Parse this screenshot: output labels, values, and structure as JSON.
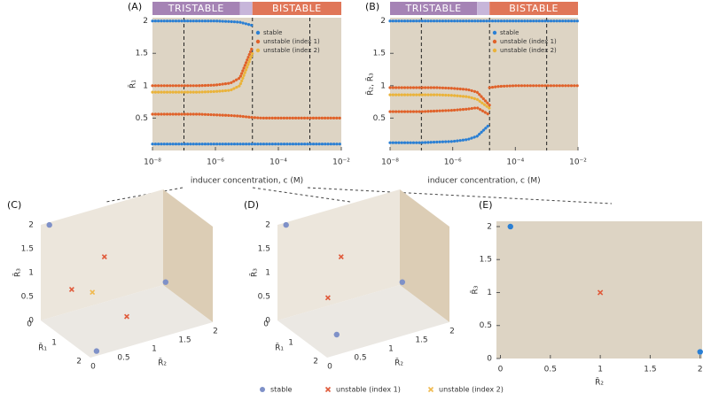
{
  "chart_data": [
    {
      "type": "line",
      "label": "(A)",
      "xscale": "log",
      "xlabel": "inducer concentration, c (M)",
      "ylabel": "R̄₁",
      "background": "#ddd4c4",
      "legend": "upper right",
      "x": [
        1e-08,
        3e-08,
        1e-07,
        3e-07,
        1e-06,
        3e-06,
        6e-06,
        1.5e-05,
        3e-05,
        0.0001,
        0.0003,
        0.001,
        0.003,
        0.01
      ],
      "xlim": [
        1e-08,
        0.01
      ],
      "xticks": [
        {
          "value": 1e-08,
          "label": "10⁻⁸"
        },
        {
          "value": 1e-06,
          "label": "10⁻⁶"
        },
        {
          "value": 0.0001,
          "label": "10⁻⁴"
        },
        {
          "value": 0.01,
          "label": "10⁻²"
        }
      ],
      "ylim": [
        0,
        2.05
      ],
      "yticks": [
        0.5,
        1,
        1.5,
        2
      ],
      "regions": [
        {
          "label": "TRISTABLE",
          "from": 1e-08,
          "to": 6e-06,
          "color": "#a583b5"
        },
        {
          "from": 6e-06,
          "to": 1.5e-05,
          "color": "#c7b6da"
        },
        {
          "label": "BISTABLE",
          "from": 1.5e-05,
          "to": 0.01,
          "color": "#e07658"
        }
      ],
      "vlines": [
        1e-07,
        1.5e-05,
        0.001
      ],
      "series": [
        {
          "name": "stable",
          "color": "#2a7fd4",
          "branches": [
            [
              2,
              2,
              2,
              2,
              2,
              1.99,
              1.98,
              1.93,
              null,
              null,
              null,
              null,
              null,
              null
            ],
            [
              0.1,
              0.1,
              0.1,
              0.1,
              0.1,
              0.1,
              0.1,
              0.1,
              0.1,
              0.1,
              0.1,
              0.1,
              0.1,
              0.1
            ]
          ]
        },
        {
          "name": "unstable (index 1)",
          "color": "#e0622a",
          "branches": [
            [
              1,
              1,
              1,
              1,
              1.01,
              1.04,
              1.12,
              1.6,
              null,
              null,
              null,
              null,
              null,
              null
            ],
            [
              0.56,
              0.56,
              0.56,
              0.56,
              0.55,
              0.54,
              0.53,
              0.51,
              0.5,
              0.5,
              0.5,
              0.5,
              0.5,
              0.5
            ]
          ]
        },
        {
          "name": "unstable (index 2)",
          "color": "#eab33a",
          "branches": [
            [
              0.9,
              0.9,
              0.9,
              0.9,
              0.91,
              0.93,
              1.0,
              1.5,
              null,
              null,
              null,
              null,
              null,
              null
            ]
          ]
        }
      ]
    },
    {
      "type": "line",
      "label": "(B)",
      "xscale": "log",
      "xlabel": "inducer concentration, c (M)",
      "ylabel": "R̄₂, R̄₃",
      "background": "#ddd4c4",
      "legend": "upper right",
      "x": [
        1e-08,
        3e-08,
        1e-07,
        3e-07,
        1e-06,
        3e-06,
        6e-06,
        1.5e-05,
        3e-05,
        0.0001,
        0.0003,
        0.001,
        0.003,
        0.01
      ],
      "xlim": [
        1e-08,
        0.01
      ],
      "xticks": [
        {
          "value": 1e-08,
          "label": "10⁻⁸"
        },
        {
          "value": 1e-06,
          "label": "10⁻⁶"
        },
        {
          "value": 0.0001,
          "label": "10⁻⁴"
        },
        {
          "value": 0.01,
          "label": "10⁻²"
        }
      ],
      "ylim": [
        0,
        2.05
      ],
      "yticks": [
        0.5,
        1,
        1.5,
        2
      ],
      "regions": [
        {
          "label": "TRISTABLE",
          "from": 1e-08,
          "to": 6e-06,
          "color": "#a583b5"
        },
        {
          "from": 6e-06,
          "to": 1.5e-05,
          "color": "#c7b6da"
        },
        {
          "label": "BISTABLE",
          "from": 1.5e-05,
          "to": 0.01,
          "color": "#e07658"
        }
      ],
      "vlines": [
        1e-07,
        1.5e-05,
        0.001
      ],
      "series": [
        {
          "name": "stable",
          "color": "#2a7fd4",
          "branches": [
            [
              2,
              2,
              2,
              2,
              2,
              2,
              2,
              2,
              2,
              2,
              2,
              2,
              2,
              2
            ],
            [
              0.12,
              0.12,
              0.12,
              0.13,
              0.14,
              0.17,
              0.22,
              0.4,
              null,
              null,
              null,
              null,
              null,
              null
            ]
          ]
        },
        {
          "name": "unstable (index 1)",
          "color": "#e0622a",
          "branches": [
            [
              0.97,
              0.97,
              0.97,
              0.97,
              0.96,
              0.94,
              0.9,
              0.7,
              null,
              null,
              null,
              null,
              null,
              null
            ],
            [
              0.6,
              0.6,
              0.6,
              0.61,
              0.62,
              0.64,
              0.66,
              0.55,
              null,
              null,
              null,
              null,
              null,
              null
            ],
            [
              null,
              null,
              null,
              null,
              null,
              null,
              null,
              0.97,
              0.99,
              1,
              1,
              1,
              1,
              1
            ]
          ]
        },
        {
          "name": "unstable (index 2)",
          "color": "#eab33a",
          "branches": [
            [
              0.86,
              0.86,
              0.86,
              0.86,
              0.85,
              0.83,
              0.79,
              0.65,
              null,
              null,
              null,
              null,
              null,
              null
            ]
          ]
        }
      ]
    },
    {
      "type": "scatter3d",
      "label": "(C)",
      "xlabel": "R̄₁",
      "ylabel": "R̄₂",
      "zlabel": "R̄₃",
      "xlim": [
        0,
        2
      ],
      "ylim": [
        0,
        2
      ],
      "zlim": [
        0,
        2
      ],
      "xticks": [
        0,
        1,
        2
      ],
      "yticks": [
        0,
        0.5,
        1,
        1.5,
        2
      ],
      "zticks": [
        0,
        0.5,
        1,
        1.5,
        2
      ],
      "series": [
        {
          "color": "#7f91c8",
          "marker": "circle",
          "x": [
            0.1,
            0.1,
            2
          ],
          "y": [
            0.1,
            2,
            0.1
          ],
          "z": [
            2,
            0.1,
            0.1
          ]
        },
        {
          "color": "#e05a3a",
          "marker": "x",
          "x": [
            0.1,
            1,
            1
          ],
          "y": [
            1,
            0.1,
            1
          ],
          "z": [
            1,
            1,
            0.1
          ]
        },
        {
          "color": "#f0b94e",
          "marker": "x",
          "x": [
            0.6
          ],
          "y": [
            0.6
          ],
          "z": [
            0.6
          ]
        }
      ]
    },
    {
      "type": "scatter3d",
      "label": "(D)",
      "xlabel": "R̄₁",
      "ylabel": "R̄₂",
      "zlabel": "R̄₃",
      "xlim": [
        0,
        2
      ],
      "ylim": [
        0,
        2
      ],
      "zlim": [
        0,
        2
      ],
      "xticks": [
        0,
        1,
        2
      ],
      "yticks": [
        0,
        0.5,
        1,
        1.5,
        2
      ],
      "zticks": [
        0,
        0.5,
        1,
        1.5,
        2
      ],
      "series": [
        {
          "color": "#7f91c8",
          "marker": "circle",
          "x": [
            0.1,
            0.1,
            1.4
          ],
          "y": [
            0.1,
            2,
            0.4
          ],
          "z": [
            2,
            0.1,
            0.1
          ]
        },
        {
          "color": "#e05a3a",
          "marker": "x",
          "x": [
            0.1,
            0.8
          ],
          "y": [
            1,
            0.5
          ],
          "z": [
            1,
            0.6
          ]
        }
      ]
    },
    {
      "type": "scatter",
      "label": "(E)",
      "xlabel": "R̄₂",
      "ylabel": "R̄₃",
      "background": "#ddd4c4",
      "xlim": [
        -0.04,
        2.02
      ],
      "ylim": [
        0,
        2.08
      ],
      "xticks": [
        0,
        0.5,
        1,
        1.5,
        2
      ],
      "yticks": [
        0,
        0.5,
        1,
        1.5,
        2
      ],
      "series": [
        {
          "color": "#2a7fd4",
          "marker": "circle",
          "x": [
            0.1,
            2
          ],
          "y": [
            2,
            0.1
          ]
        },
        {
          "color": "#e05a3a",
          "marker": "x",
          "x": [
            1
          ],
          "y": [
            1
          ]
        }
      ]
    }
  ],
  "shared_legend": [
    {
      "name": "stable",
      "color": "#7f91c8",
      "marker": "circle"
    },
    {
      "name": "unstable (index 1)",
      "color": "#e05a3a",
      "marker": "x"
    },
    {
      "name": "unstable (index 2)",
      "color": "#f0b94e",
      "marker": "x"
    }
  ]
}
